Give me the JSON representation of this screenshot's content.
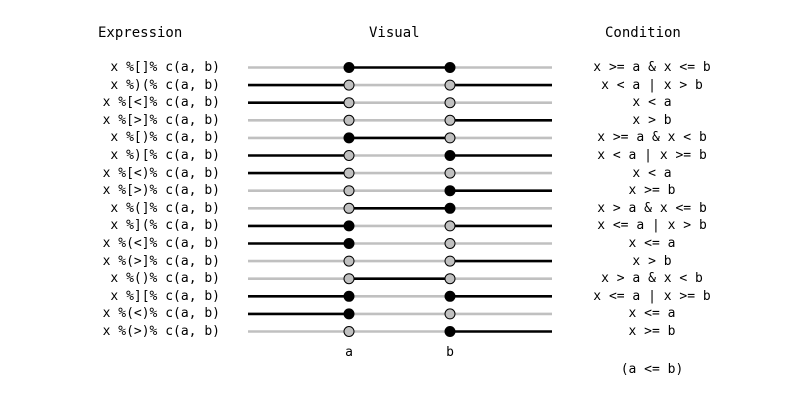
{
  "headers": {
    "expression": "Expression",
    "visual": "Visual",
    "condition": "Condition"
  },
  "axis_labels": {
    "a": "a",
    "b": "b"
  },
  "footnote": "(a <= b)",
  "colors": {
    "gray": "#c0c0c0",
    "dark": "#000000",
    "open_fill": "#c0c0c0"
  },
  "rows": [
    {
      "expr": "x %[]% c(a, b)",
      "cond": "x >= a & x <= b",
      "left": false,
      "mid": true,
      "right": false,
      "a_closed": true,
      "b_closed": true
    },
    {
      "expr": "x %)(% c(a, b)",
      "cond": "x < a | x > b",
      "left": true,
      "mid": false,
      "right": true,
      "a_closed": false,
      "b_closed": false
    },
    {
      "expr": "x %[<]% c(a, b)",
      "cond": "x < a",
      "left": true,
      "mid": false,
      "right": false,
      "a_closed": false,
      "b_closed": false
    },
    {
      "expr": "x %[>]% c(a, b)",
      "cond": "x > b",
      "left": false,
      "mid": false,
      "right": true,
      "a_closed": false,
      "b_closed": false
    },
    {
      "expr": "x %[)% c(a, b)",
      "cond": "x >= a & x < b",
      "left": false,
      "mid": true,
      "right": false,
      "a_closed": true,
      "b_closed": false
    },
    {
      "expr": "x %)[% c(a, b)",
      "cond": "x < a | x >= b",
      "left": true,
      "mid": false,
      "right": true,
      "a_closed": false,
      "b_closed": true
    },
    {
      "expr": "x %[<)% c(a, b)",
      "cond": "x < a",
      "left": true,
      "mid": false,
      "right": false,
      "a_closed": false,
      "b_closed": false
    },
    {
      "expr": "x %[>)% c(a, b)",
      "cond": "x >= b",
      "left": false,
      "mid": false,
      "right": true,
      "a_closed": false,
      "b_closed": true
    },
    {
      "expr": "x %(]% c(a, b)",
      "cond": "x > a & x <= b",
      "left": false,
      "mid": true,
      "right": false,
      "a_closed": false,
      "b_closed": true
    },
    {
      "expr": "x %](% c(a, b)",
      "cond": "x <= a | x > b",
      "left": true,
      "mid": false,
      "right": true,
      "a_closed": true,
      "b_closed": false
    },
    {
      "expr": "x %(<]% c(a, b)",
      "cond": "x <= a",
      "left": true,
      "mid": false,
      "right": false,
      "a_closed": true,
      "b_closed": false
    },
    {
      "expr": "x %(>]% c(a, b)",
      "cond": "x > b",
      "left": false,
      "mid": false,
      "right": true,
      "a_closed": false,
      "b_closed": false
    },
    {
      "expr": "x %()% c(a, b)",
      "cond": "x > a & x < b",
      "left": false,
      "mid": true,
      "right": false,
      "a_closed": false,
      "b_closed": false
    },
    {
      "expr": "x %][% c(a, b)",
      "cond": "x <= a | x >= b",
      "left": true,
      "mid": false,
      "right": true,
      "a_closed": true,
      "b_closed": true
    },
    {
      "expr": "x %(<)% c(a, b)",
      "cond": "x <= a",
      "left": true,
      "mid": false,
      "right": false,
      "a_closed": true,
      "b_closed": false
    },
    {
      "expr": "x %(>)% c(a, b)",
      "cond": "x >= b",
      "left": false,
      "mid": false,
      "right": true,
      "a_closed": false,
      "b_closed": true
    }
  ]
}
